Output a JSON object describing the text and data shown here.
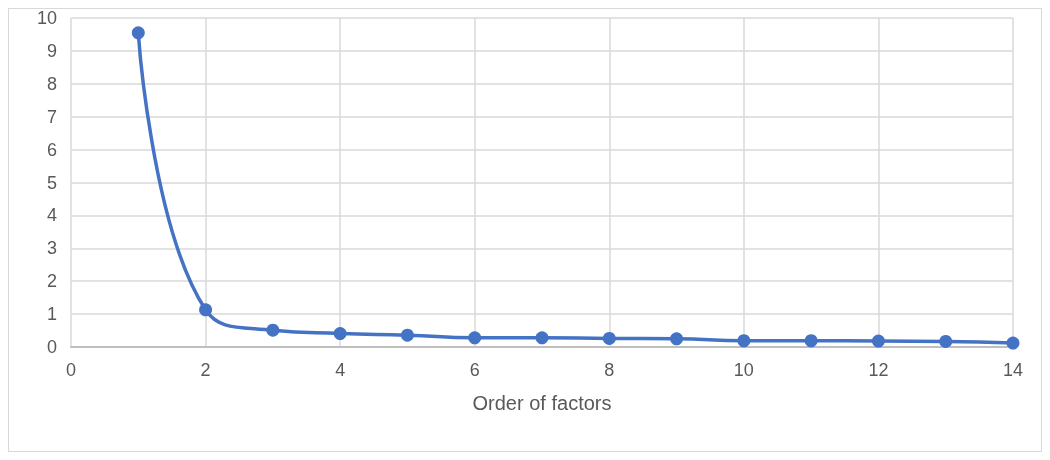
{
  "chart_data": {
    "type": "line",
    "xlabel": "Order of factors",
    "x": [
      1,
      2,
      3,
      4,
      5,
      6,
      7,
      8,
      9,
      10,
      11,
      12,
      13,
      14
    ],
    "series": [
      {
        "color": "#4472c4",
        "values": [
          9.55,
          1.13,
          0.51,
          0.41,
          0.36,
          0.28,
          0.28,
          0.26,
          0.25,
          0.19,
          0.19,
          0.18,
          0.17,
          0.12
        ]
      }
    ],
    "xlim": [
      0,
      14
    ],
    "xticks": [
      0,
      2,
      4,
      6,
      8,
      10,
      12,
      14
    ],
    "ylim": [
      0,
      10
    ],
    "yticks": [
      0,
      1,
      2,
      3,
      4,
      5,
      6,
      7,
      8,
      9,
      10
    ],
    "grid": true,
    "marker": "circle",
    "line_style": "solid"
  }
}
